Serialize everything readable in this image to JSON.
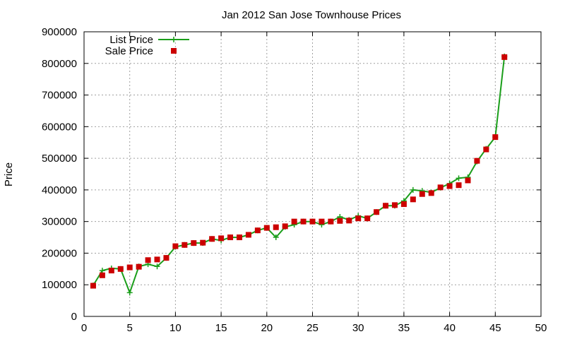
{
  "chart_data": {
    "type": "line",
    "title": "Jan 2012 San Jose Townhouse Prices",
    "xlabel": "",
    "ylabel": "Price",
    "xlim": [
      0,
      50
    ],
    "ylim": [
      0,
      900000
    ],
    "xticks": [
      0,
      5,
      10,
      15,
      20,
      25,
      30,
      35,
      40,
      45,
      50
    ],
    "yticks": [
      0,
      100000,
      200000,
      300000,
      400000,
      500000,
      600000,
      700000,
      800000,
      900000
    ],
    "grid": true,
    "legend_position": "top-left",
    "series": [
      {
        "name": "List Price",
        "style": "line+cross",
        "color": "#1a9e1a",
        "x": [
          1,
          2,
          3,
          4,
          5,
          6,
          7,
          8,
          9,
          10,
          11,
          12,
          13,
          14,
          15,
          16,
          17,
          18,
          19,
          20,
          21,
          22,
          23,
          24,
          25,
          26,
          27,
          28,
          29,
          30,
          31,
          32,
          33,
          34,
          35,
          36,
          37,
          38,
          39,
          40,
          41,
          42,
          43,
          44,
          45,
          46
        ],
        "y": [
          98000,
          145000,
          152000,
          150000,
          75000,
          158000,
          165000,
          158000,
          185000,
          220000,
          226000,
          232000,
          232000,
          245000,
          240000,
          250000,
          250000,
          258000,
          272000,
          280000,
          250000,
          283000,
          290000,
          300000,
          300000,
          290000,
          300000,
          315000,
          305000,
          318000,
          310000,
          330000,
          350000,
          350000,
          365000,
          400000,
          397000,
          392000,
          407000,
          420000,
          437000,
          440000,
          490000,
          530000,
          567000,
          822000
        ]
      },
      {
        "name": "Sale Price",
        "style": "square",
        "color": "#cc0000",
        "x": [
          1,
          2,
          3,
          4,
          5,
          6,
          7,
          8,
          9,
          10,
          11,
          12,
          13,
          14,
          15,
          16,
          17,
          18,
          19,
          20,
          21,
          22,
          23,
          24,
          25,
          26,
          27,
          28,
          29,
          30,
          31,
          32,
          33,
          34,
          35,
          36,
          37,
          38,
          39,
          40,
          41,
          42,
          43,
          44,
          45,
          46
        ],
        "y": [
          97000,
          130000,
          145000,
          150000,
          155000,
          157000,
          178000,
          180000,
          185000,
          222000,
          226000,
          232000,
          233000,
          245000,
          247000,
          250000,
          250000,
          258000,
          272000,
          280000,
          282000,
          285000,
          300000,
          300000,
          300000,
          300000,
          300000,
          302000,
          303000,
          310000,
          310000,
          330000,
          350000,
          352000,
          355000,
          370000,
          387000,
          390000,
          408000,
          412000,
          415000,
          430000,
          492000,
          528000,
          567000,
          820000
        ]
      }
    ]
  }
}
